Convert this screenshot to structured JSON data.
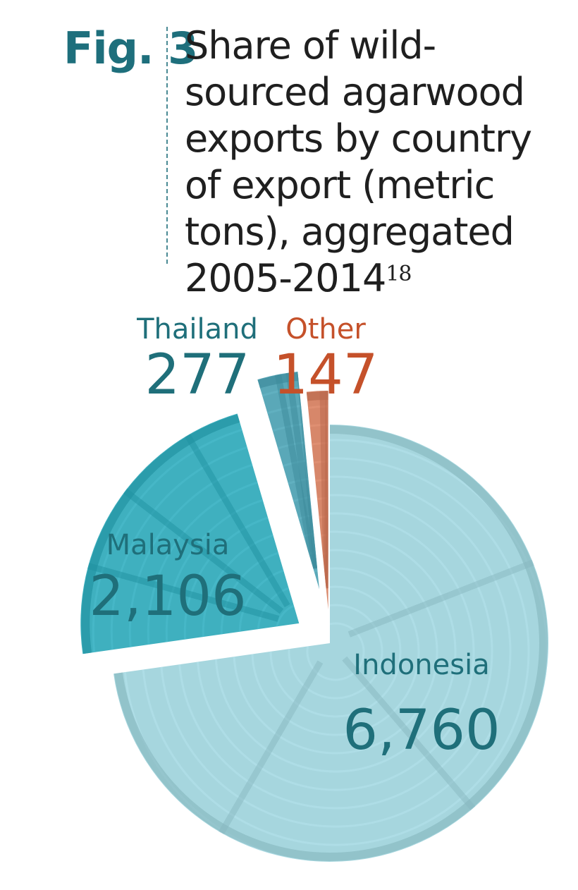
{
  "figure": {
    "label": "Fig. 3",
    "title": "Share of wild-sourced agarwood exports by country of export (metric tons), aggregated 2005-2014",
    "footnote": "18"
  },
  "colors": {
    "label_teal": "#1f6f7a",
    "label_orange": "#c5512a",
    "indonesia": "#a6d6de",
    "malaysia": "#3fb0bf",
    "thailand": "#5aa8b8",
    "other": "#d7876a"
  },
  "chart_data": {
    "type": "pie",
    "title": "Share of wild-sourced agarwood exports by country of export (metric tons), aggregated 2005-2014",
    "unit": "metric tons",
    "categories": [
      "Indonesia",
      "Malaysia",
      "Thailand",
      "Other"
    ],
    "values": [
      6760,
      2106,
      277,
      147
    ],
    "value_labels": [
      "6,760",
      "2,106",
      "277",
      "147"
    ],
    "exploded": true
  }
}
